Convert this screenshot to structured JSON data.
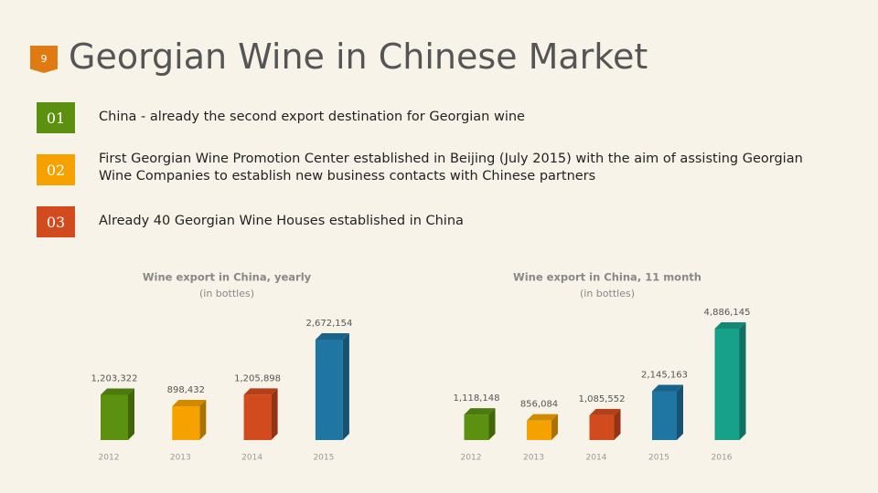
{
  "header": {
    "page_number": "9",
    "title": "Georgian Wine in Chinese Market"
  },
  "items": [
    {
      "number": "01",
      "text": "China - already the second export destination for Georgian wine"
    },
    {
      "number": "02",
      "text": "First Georgian Wine Promotion Center established in Beijing (July 2015) with the aim of assisting Georgian Wine Companies to establish new business contacts with Chinese partners"
    },
    {
      "number": "03",
      "text": "Already 40 Georgian Wine Houses established in China"
    }
  ],
  "chart_data": [
    {
      "type": "bar",
      "title": "Wine export in China, yearly",
      "subtitle": "(in bottles)",
      "categories": [
        "2012",
        "2013",
        "2014",
        "2015"
      ],
      "values": [
        1203322,
        898432,
        1205898,
        2672154
      ],
      "value_labels": [
        "1,203,322",
        "898,432",
        "1,205,898",
        "2,672,154"
      ],
      "colors": [
        "#5b9010",
        "#f5a200",
        "#d24b1e",
        "#1f76a3"
      ]
    },
    {
      "type": "bar",
      "title": "Wine export in China, 11 month",
      "subtitle": "(in bottles)",
      "categories": [
        "2012",
        "2013",
        "2014",
        "2015",
        "2016"
      ],
      "values": [
        1118148,
        856084,
        1085552,
        2145163,
        4886145
      ],
      "value_labels": [
        "1,118,148",
        "856,084",
        "1,085,552",
        "2,145,163",
        "4,886,145"
      ],
      "colors": [
        "#5b9010",
        "#f5a200",
        "#d24b1e",
        "#1f76a3",
        "#17a08a"
      ]
    }
  ]
}
